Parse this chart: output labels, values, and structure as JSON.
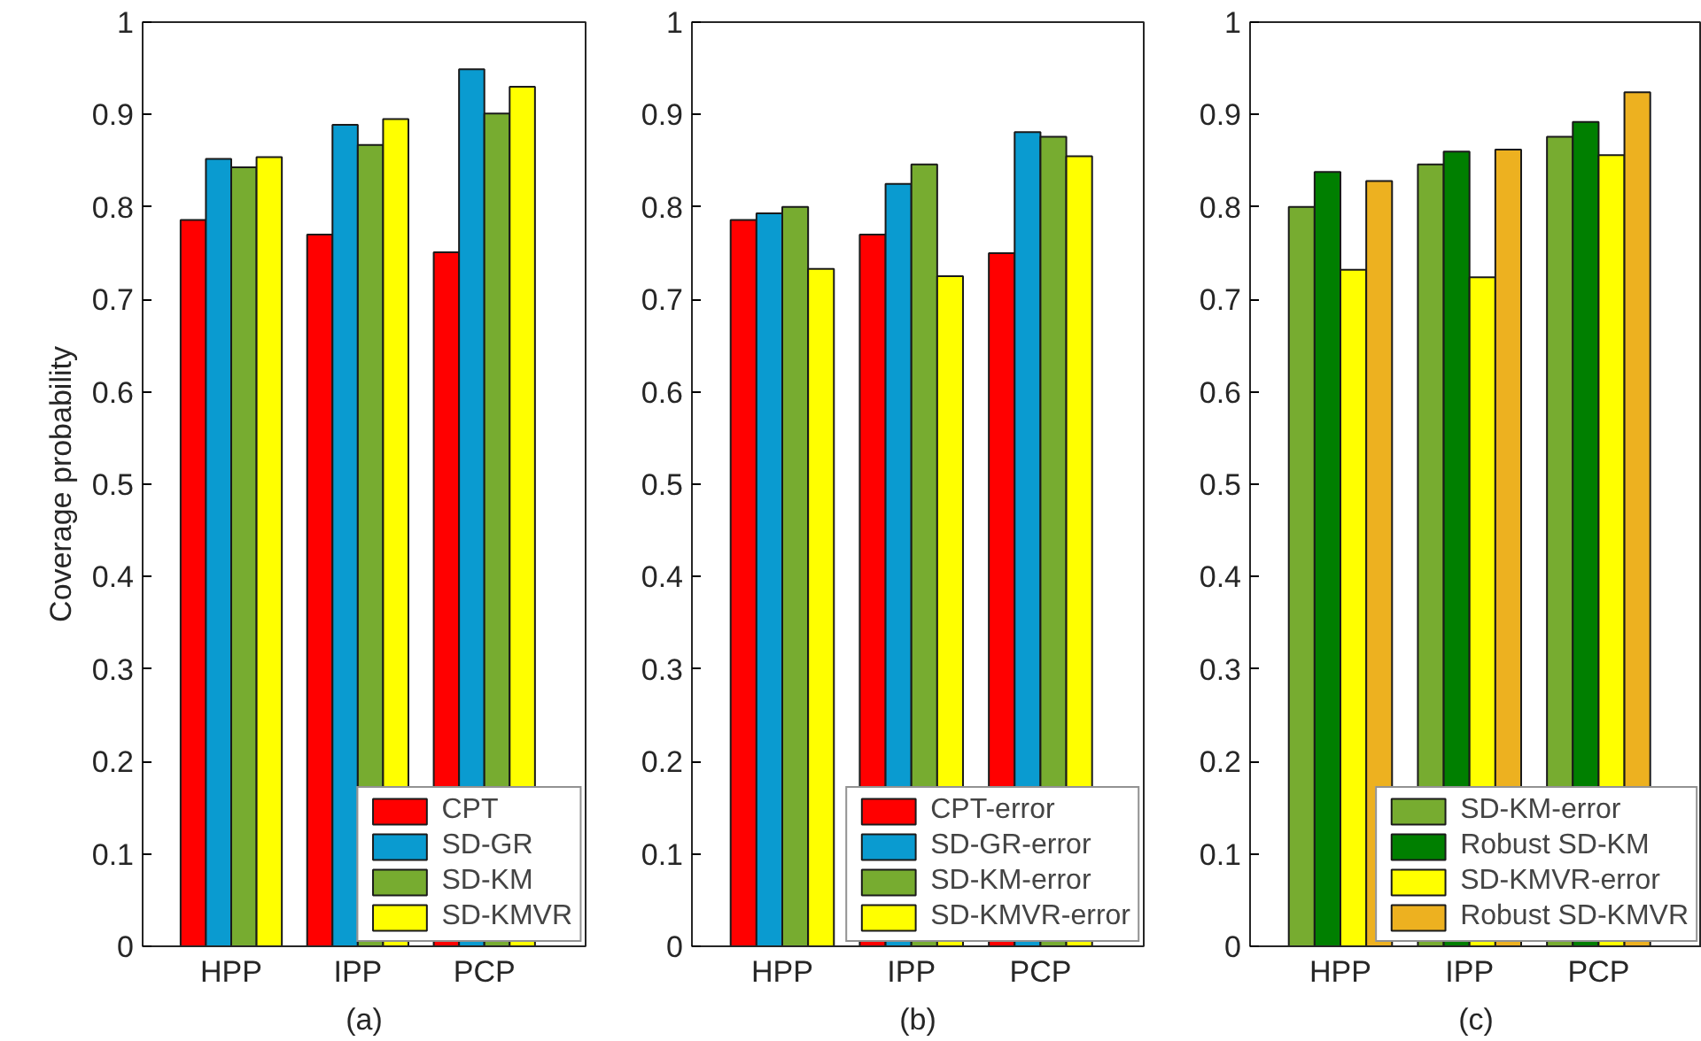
{
  "chart_data": [
    {
      "type": "bar",
      "xlabel": "(a)",
      "ylabel": "Coverage probability",
      "categories": [
        "HPP",
        "IPP",
        "PCP"
      ],
      "ylim": [
        0,
        1
      ],
      "yticks": [
        0,
        0.1,
        0.2,
        0.3,
        0.4,
        0.5,
        0.6,
        0.7,
        0.8,
        0.9,
        1
      ],
      "legend": "bottom right",
      "grid": false,
      "series": [
        {
          "name": "CPT",
          "color": "#ff0000",
          "values": [
            0.786,
            0.77,
            0.751
          ]
        },
        {
          "name": "SD-GR",
          "color": "#0a9bd0",
          "values": [
            0.852,
            0.889,
            0.949
          ]
        },
        {
          "name": "SD-KM",
          "color": "#77ac30",
          "values": [
            0.843,
            0.867,
            0.901
          ]
        },
        {
          "name": "SD-KMVR",
          "color": "#ffff00",
          "values": [
            0.854,
            0.895,
            0.93
          ]
        }
      ]
    },
    {
      "type": "bar",
      "xlabel": "(b)",
      "categories": [
        "HPP",
        "IPP",
        "PCP"
      ],
      "ylim": [
        0,
        1
      ],
      "yticks": [
        0,
        0.1,
        0.2,
        0.3,
        0.4,
        0.5,
        0.6,
        0.7,
        0.8,
        0.9,
        1
      ],
      "legend": "bottom right",
      "grid": false,
      "series": [
        {
          "name": "CPT-error",
          "color": "#ff0000",
          "values": [
            0.786,
            0.77,
            0.75
          ]
        },
        {
          "name": "SD-GR-error",
          "color": "#0a9bd0",
          "values": [
            0.793,
            0.825,
            0.881
          ]
        },
        {
          "name": "SD-KM-error",
          "color": "#77ac30",
          "values": [
            0.8,
            0.846,
            0.876
          ]
        },
        {
          "name": "SD-KMVR-error",
          "color": "#ffff00",
          "values": [
            0.733,
            0.725,
            0.855
          ]
        }
      ]
    },
    {
      "type": "bar",
      "xlabel": "(c)",
      "categories": [
        "HPP",
        "IPP",
        "PCP"
      ],
      "ylim": [
        0,
        1
      ],
      "yticks": [
        0,
        0.1,
        0.2,
        0.3,
        0.4,
        0.5,
        0.6,
        0.7,
        0.8,
        0.9,
        1
      ],
      "legend": "bottom right",
      "grid": false,
      "series": [
        {
          "name": "SD-KM-error",
          "color": "#77ac30",
          "values": [
            0.8,
            0.846,
            0.876
          ]
        },
        {
          "name": "Robust SD-KM",
          "color": "#007f00",
          "values": [
            0.838,
            0.86,
            0.892
          ]
        },
        {
          "name": "SD-KMVR-error",
          "color": "#ffff00",
          "values": [
            0.732,
            0.724,
            0.856
          ]
        },
        {
          "name": "Robust SD-KMVR",
          "color": "#edb120",
          "values": [
            0.828,
            0.862,
            0.924
          ]
        }
      ]
    }
  ]
}
